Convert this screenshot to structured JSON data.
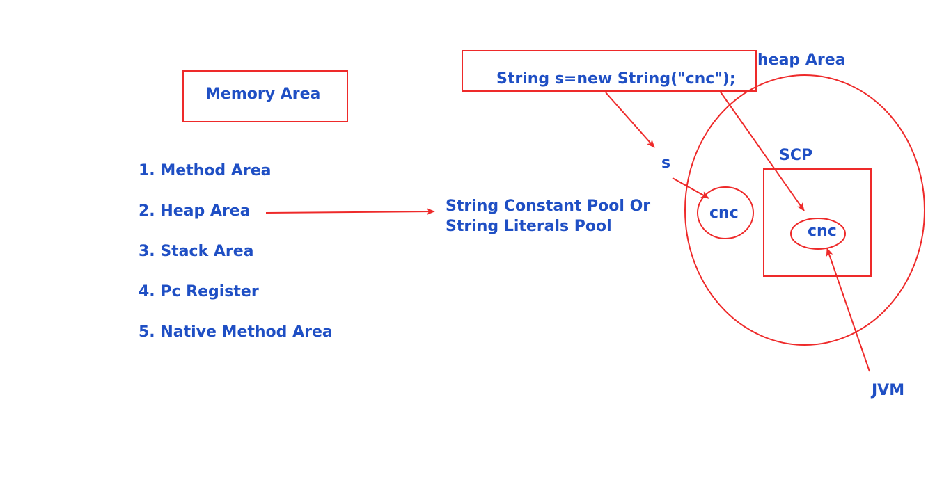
{
  "title": "Memory Area",
  "memory_areas": [
    "1. Method Area",
    "2. Heap Area",
    "3. Stack Area",
    "4. Pc Register",
    "5. Native Method Area"
  ],
  "pool_label": [
    "String Constant Pool Or",
    "String Literals Pool"
  ],
  "code": "String s=new String(\"cnc\");",
  "heap_label": "heap Area",
  "scp_label": "SCP",
  "reference_label": "s",
  "heap_object_label": "cnc",
  "scp_object_label": "cnc",
  "jvm_label": "JVM",
  "colors": {
    "text": "#1f4fc4",
    "lines": "#ee2a2a",
    "background": "#ffffff"
  }
}
